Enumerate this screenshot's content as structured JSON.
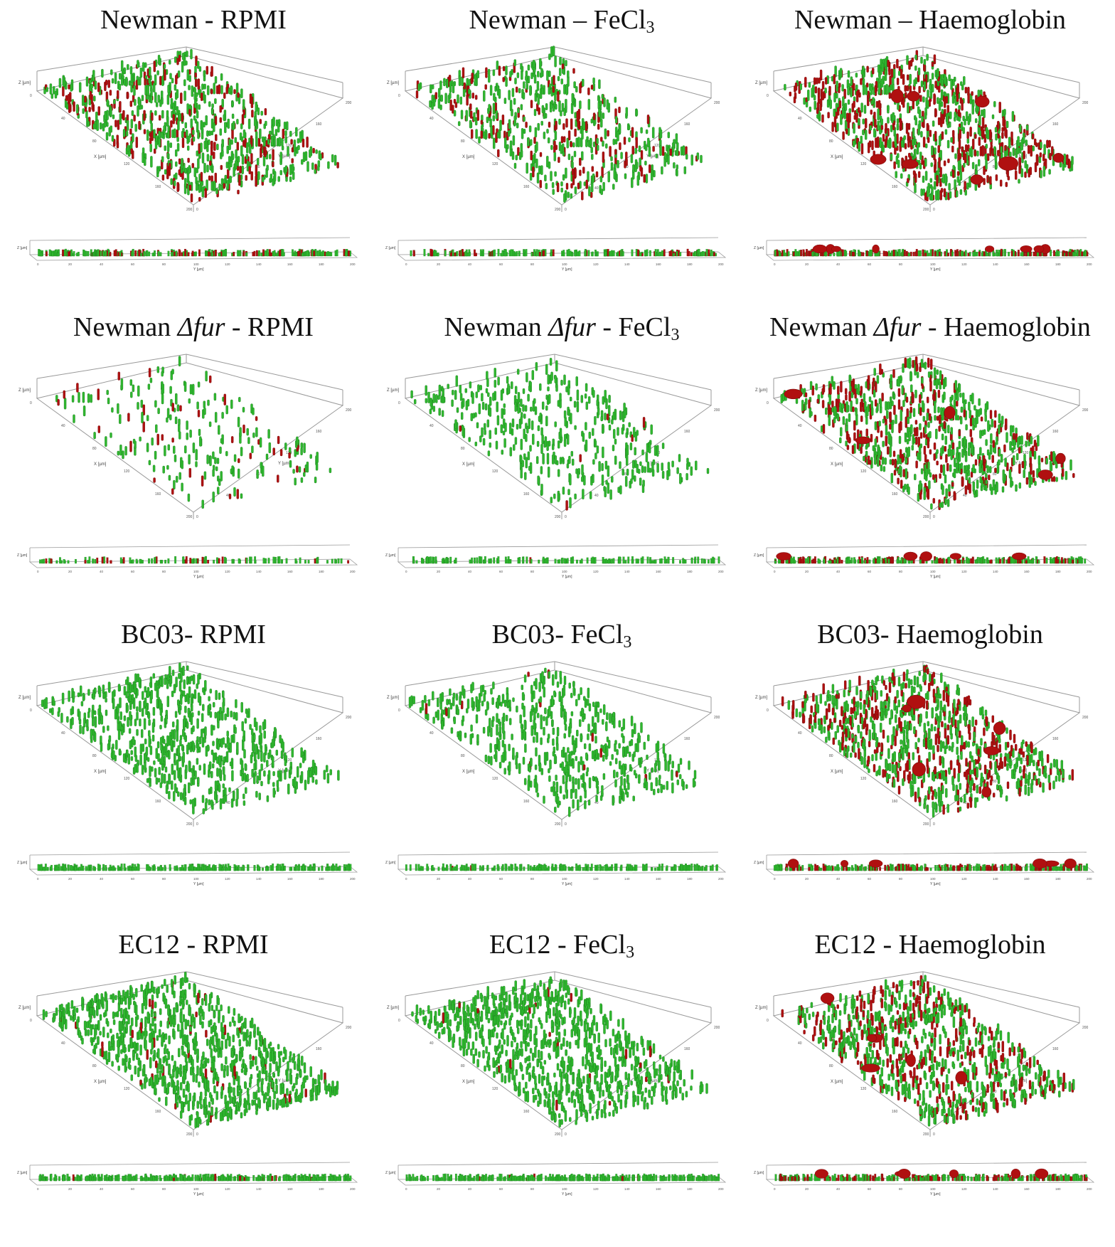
{
  "panels": [
    {
      "id": "newman-rpmi",
      "strain": "Newman",
      "sep": " - ",
      "medium": "RPMI",
      "mutant": "",
      "density": 0.85,
      "red": 0.28,
      "blobs": 0,
      "sub": ""
    },
    {
      "id": "newman-fecl3",
      "strain": "Newman",
      "sep": " – ",
      "medium": "FeCl",
      "mutant": "",
      "density": 0.65,
      "red": 0.25,
      "blobs": 0,
      "sub": "3"
    },
    {
      "id": "newman-hb",
      "strain": "Newman",
      "sep": " – ",
      "medium": "Haemoglobin",
      "mutant": "",
      "density": 0.95,
      "red": 0.45,
      "blobs": 8,
      "sub": ""
    },
    {
      "id": "fur-rpmi",
      "strain": "Newman ",
      "sep": " - ",
      "medium": "RPMI",
      "mutant": "Δfur",
      "density": 0.25,
      "red": 0.18,
      "blobs": 0,
      "sub": ""
    },
    {
      "id": "fur-fecl3",
      "strain": "Newman ",
      "sep": " - ",
      "medium": "FeCl",
      "mutant": "Δfur",
      "density": 0.45,
      "red": 0.02,
      "blobs": 0,
      "sub": "3"
    },
    {
      "id": "fur-hb",
      "strain": "Newman ",
      "sep": " - ",
      "medium": "Haemoglobin",
      "mutant": "Δfur",
      "density": 0.85,
      "red": 0.38,
      "blobs": 5,
      "sub": ""
    },
    {
      "id": "bc03-rpmi",
      "strain": "BC03",
      "sep": "- ",
      "medium": "RPMI",
      "mutant": "",
      "density": 0.75,
      "red": 0.0,
      "blobs": 0,
      "sub": ""
    },
    {
      "id": "bc03-fecl3",
      "strain": "BC03",
      "sep": "- ",
      "medium": "FeCl",
      "mutant": "",
      "density": 0.6,
      "red": 0.02,
      "blobs": 0,
      "sub": "3"
    },
    {
      "id": "bc03-hb",
      "strain": "BC03",
      "sep": "- ",
      "medium": "Haemoglobin",
      "mutant": "",
      "density": 0.95,
      "red": 0.4,
      "blobs": 6,
      "sub": ""
    },
    {
      "id": "ec12-rpmi",
      "strain": "EC12",
      "sep": " - ",
      "medium": "RPMI",
      "mutant": "",
      "density": 1.0,
      "red": 0.05,
      "blobs": 0,
      "sub": ""
    },
    {
      "id": "ec12-fecl3",
      "strain": "EC12",
      "sep": " - ",
      "medium": "FeCl",
      "mutant": "",
      "density": 0.95,
      "red": 0.02,
      "blobs": 0,
      "sub": "3"
    },
    {
      "id": "ec12-hb",
      "strain": "EC12",
      "sep": " - ",
      "medium": "Haemoglobin",
      "mutant": "",
      "density": 0.9,
      "red": 0.35,
      "blobs": 6,
      "sub": ""
    }
  ],
  "axes": {
    "x_label": "X [µm]",
    "y_label": "Y [µm]",
    "z_label": "Z [µm]",
    "ticks": [
      "0",
      "20",
      "40",
      "60",
      "80",
      "100",
      "120",
      "140",
      "160",
      "180",
      "200"
    ]
  },
  "colors": {
    "green": "#2fb82f",
    "green_dark": "#1a7a1a",
    "red": "#b01010",
    "red_dark": "#6e0808",
    "frame": "#999999"
  }
}
